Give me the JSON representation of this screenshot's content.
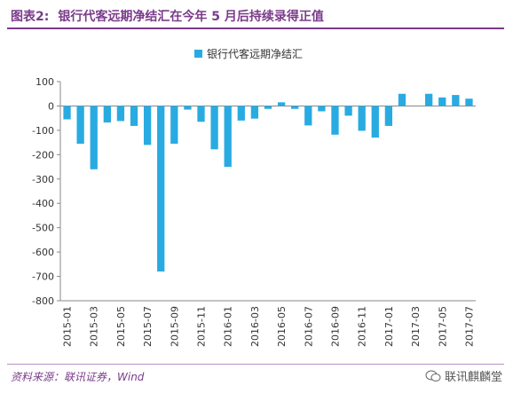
{
  "figure": {
    "number": "图表2:",
    "title": "银行代客远期净结汇在今年 5 月后持续录得正值",
    "source": "资料来源：联讯证券，Wind",
    "watermark": "联讯麒麟堂"
  },
  "colors": {
    "accent": "#7b3b8b",
    "bar": "#29abe2"
  },
  "chart_data": {
    "type": "bar",
    "title": "",
    "xlabel": "",
    "ylabel": "",
    "ylim": [
      -800,
      100
    ],
    "yticks": [
      100,
      0,
      -100,
      -200,
      -300,
      -400,
      -500,
      -600,
      -700,
      -800
    ],
    "grid": false,
    "legend_position": "top-left",
    "categories": [
      "2015-01",
      "2015-02",
      "2015-03",
      "2015-04",
      "2015-05",
      "2015-06",
      "2015-07",
      "2015-08",
      "2015-09",
      "2015-10",
      "2015-11",
      "2015-12",
      "2016-01",
      "2016-02",
      "2016-03",
      "2016-04",
      "2016-05",
      "2016-06",
      "2016-07",
      "2016-08",
      "2016-09",
      "2016-10",
      "2016-11",
      "2016-12",
      "2017-01",
      "2017-02",
      "2017-03",
      "2017-04",
      "2017-05",
      "2017-06",
      "2017-07"
    ],
    "tick_labels": [
      "2015-01",
      "2015-03",
      "2015-05",
      "2015-07",
      "2015-09",
      "2015-11",
      "2016-01",
      "2016-03",
      "2016-05",
      "2016-07",
      "2016-09",
      "2016-11",
      "2017-01",
      "2017-03",
      "2017-05",
      "2017-07"
    ],
    "series": [
      {
        "name": "银行代客远期净结汇",
        "values": [
          -55,
          -155,
          -260,
          -68,
          -62,
          -82,
          -160,
          -680,
          -155,
          -15,
          -65,
          -178,
          -250,
          -60,
          -52,
          -12,
          15,
          -12,
          -80,
          -22,
          -118,
          -40,
          -102,
          -130,
          -82,
          50,
          0,
          50,
          35,
          45,
          30
        ]
      }
    ]
  }
}
